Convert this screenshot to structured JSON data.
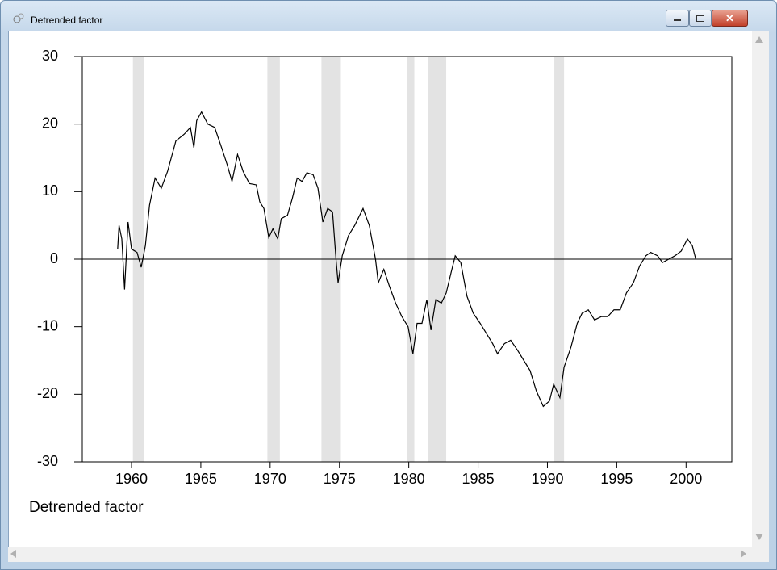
{
  "window": {
    "title": "Detrended factor"
  },
  "chart_data": {
    "type": "line",
    "caption": "Detrended factor",
    "x": [
      1959.0,
      1959.1,
      1959.3,
      1959.5,
      1959.75,
      1960.0,
      1960.4,
      1960.7,
      1961.0,
      1961.3,
      1961.7,
      1962.15,
      1962.6,
      1963.2,
      1963.8,
      1964.25,
      1964.5,
      1964.7,
      1965.05,
      1965.5,
      1966.0,
      1966.5,
      1966.9,
      1967.25,
      1967.65,
      1968.05,
      1968.5,
      1969.0,
      1969.25,
      1969.55,
      1969.9,
      1970.2,
      1970.55,
      1970.8,
      1971.25,
      1971.6,
      1971.95,
      1972.3,
      1972.65,
      1973.1,
      1973.45,
      1973.8,
      1974.15,
      1974.5,
      1974.75,
      1974.9,
      1975.2,
      1975.65,
      1976.1,
      1976.7,
      1977.15,
      1977.6,
      1977.8,
      1978.2,
      1978.6,
      1979.05,
      1979.5,
      1979.95,
      1980.3,
      1980.6,
      1980.95,
      1981.3,
      1981.6,
      1981.95,
      1982.35,
      1982.7,
      1983.05,
      1983.35,
      1983.75,
      1984.2,
      1984.65,
      1985.15,
      1985.6,
      1986.05,
      1986.4,
      1986.9,
      1987.35,
      1987.85,
      1988.3,
      1988.75,
      1989.2,
      1989.7,
      1990.15,
      1990.45,
      1990.9,
      1991.2,
      1991.7,
      1992.15,
      1992.5,
      1992.95,
      1993.4,
      1993.9,
      1994.35,
      1994.8,
      1995.25,
      1995.7,
      1996.2,
      1996.65,
      1997.1,
      1997.45,
      1997.95,
      1998.3,
      1998.75,
      1999.2,
      1999.65,
      2000.1,
      2000.45,
      2000.7
    ],
    "values": [
      1.5,
      5,
      3,
      -4.5,
      5.5,
      1.5,
      1,
      -1.2,
      2,
      8,
      12,
      10.5,
      13,
      17.5,
      18.5,
      19.5,
      16.5,
      20.5,
      21.8,
      20,
      19.5,
      16.5,
      14,
      11.5,
      15.5,
      13,
      11.2,
      11,
      8.5,
      7.5,
      3.2,
      4.5,
      3,
      6,
      6.5,
      9,
      12,
      11.5,
      12.8,
      12.5,
      10.5,
      5.5,
      7.5,
      7,
      0,
      -3.5,
      0.5,
      3.5,
      5,
      7.5,
      5,
      0,
      -3.5,
      -1.5,
      -4,
      -6.5,
      -8.5,
      -10,
      -14,
      -9.5,
      -9.5,
      -6,
      -10.5,
      -6,
      -6.5,
      -5,
      -2,
      0.5,
      -0.5,
      -5.5,
      -8,
      -9.5,
      -11,
      -12.5,
      -14,
      -12.5,
      -12,
      -13.5,
      -15,
      -16.5,
      -19.5,
      -21.8,
      -21,
      -18.5,
      -20.5,
      -16,
      -13,
      -9.5,
      -8,
      -7.5,
      -9,
      -8.5,
      -8.5,
      -7.5,
      -7.5,
      -5,
      -3.5,
      -1,
      0.5,
      1,
      0.5,
      -0.5,
      0,
      0.5,
      1.2,
      3,
      2,
      0
    ],
    "color": "#000000",
    "bands": [
      [
        1960.1,
        1960.9
      ],
      [
        1969.8,
        1970.7
      ],
      [
        1973.7,
        1975.1
      ],
      [
        1979.9,
        1980.4
      ],
      [
        1981.4,
        1982.7
      ],
      [
        1990.5,
        1991.2
      ]
    ],
    "band_color": "#e3e3e3",
    "xlim": [
      1956.45,
      2003.3
    ],
    "xticks": [
      1960,
      1965,
      1970,
      1975,
      1980,
      1985,
      1990,
      1995,
      2000
    ],
    "ylim": [
      -30,
      30
    ],
    "yticks": [
      -30,
      -20,
      -10,
      0,
      10,
      20,
      30
    ],
    "zero_line": true,
    "grid": false
  }
}
